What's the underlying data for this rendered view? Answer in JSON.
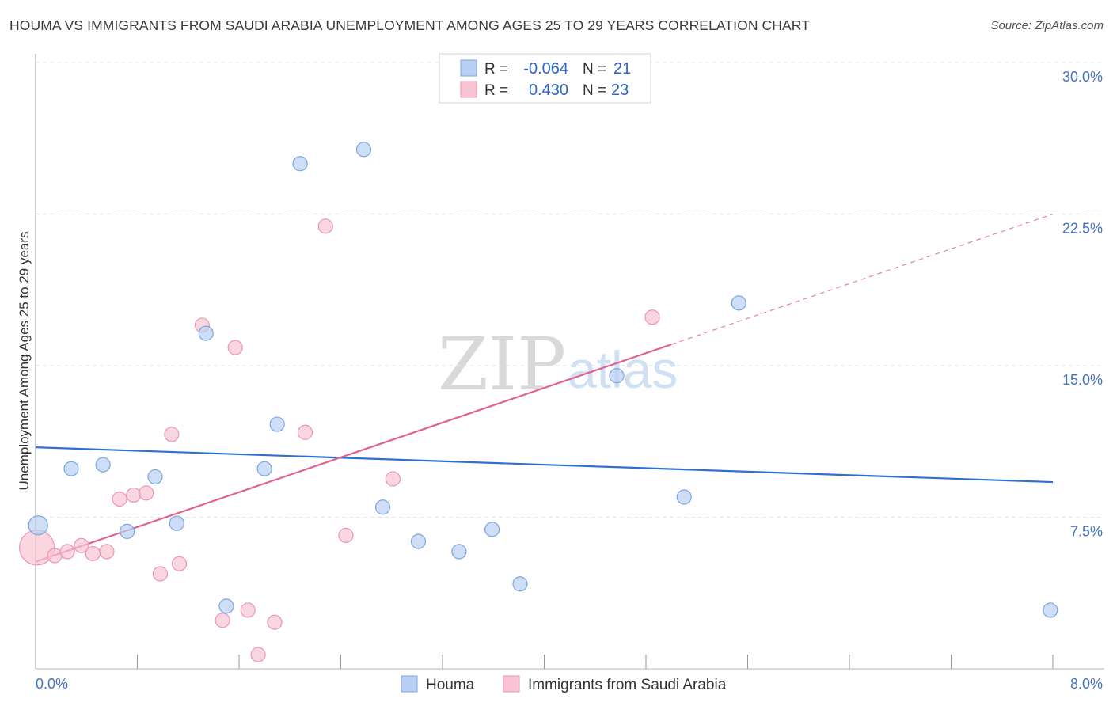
{
  "header": {
    "title": "HOUMA VS IMMIGRANTS FROM SAUDI ARABIA UNEMPLOYMENT AMONG AGES 25 TO 29 YEARS CORRELATION CHART",
    "source": "Source: ZipAtlas.com"
  },
  "watermark": {
    "zip": "ZIP",
    "atlas": "atlas"
  },
  "legend_top": {
    "row1": {
      "r_label": "R =",
      "r_value": "-0.064",
      "n_label": "N =",
      "n_value": "21"
    },
    "row2": {
      "r_label": "R =",
      "r_value": "0.430",
      "n_label": "N =",
      "n_value": "23"
    }
  },
  "legend_bottom": {
    "series1": "Houma",
    "series2": "Immigrants from Saudi Arabia"
  },
  "colors": {
    "houma_fill": "#b9d0f2",
    "houma_stroke": "#7aa6e0",
    "houma_line": "#2f6fcf",
    "saudi_fill": "#f8c4d3",
    "saudi_stroke": "#ea97b2",
    "saudi_line": "#e0638f",
    "tick_text": "#4472c4",
    "grid": "#e2e2e2"
  },
  "chart_data": {
    "type": "scatter",
    "title": "HOUMA VS IMMIGRANTS FROM SAUDI ARABIA UNEMPLOYMENT AMONG AGES 25 TO 29 YEARS CORRELATION CHART",
    "xlabel": "",
    "ylabel": "Unemployment Among Ages 25 to 29 years",
    "xlim": [
      0,
      8.0
    ],
    "ylim": [
      0,
      30.0
    ],
    "x_tick_labels": [
      "0.0%",
      "8.0%"
    ],
    "y_tick_labels": [
      "7.5%",
      "15.0%",
      "22.5%",
      "30.0%"
    ],
    "y_ticks": [
      7.5,
      15.0,
      22.5,
      30.0
    ],
    "grid": true,
    "legend_position": "top-center",
    "series": [
      {
        "name": "Houma",
        "r": -0.064,
        "n": 21,
        "points": [
          [
            0.02,
            7.1
          ],
          [
            0.28,
            9.9
          ],
          [
            0.53,
            10.1
          ],
          [
            0.72,
            6.8
          ],
          [
            0.94,
            9.5
          ],
          [
            1.11,
            7.2
          ],
          [
            1.34,
            16.6
          ],
          [
            1.5,
            3.1
          ],
          [
            1.8,
            9.9
          ],
          [
            1.9,
            12.1
          ],
          [
            2.08,
            25.0
          ],
          [
            2.58,
            25.7
          ],
          [
            2.73,
            8.0
          ],
          [
            3.01,
            6.3
          ],
          [
            3.33,
            5.8
          ],
          [
            3.59,
            6.9
          ],
          [
            3.81,
            4.2
          ],
          [
            4.57,
            14.5
          ],
          [
            5.1,
            8.5
          ],
          [
            5.53,
            18.1
          ],
          [
            7.98,
            2.9
          ]
        ],
        "trend": {
          "x": [
            0.0,
            8.0
          ],
          "y": [
            10.96,
            9.24
          ]
        }
      },
      {
        "name": "Immigrants from Saudi Arabia",
        "r": 0.43,
        "n": 23,
        "points": [
          [
            0.01,
            6.0
          ],
          [
            0.15,
            5.6
          ],
          [
            0.25,
            5.8
          ],
          [
            0.36,
            6.1
          ],
          [
            0.45,
            5.7
          ],
          [
            0.56,
            5.8
          ],
          [
            0.66,
            8.4
          ],
          [
            0.77,
            8.6
          ],
          [
            0.87,
            8.7
          ],
          [
            0.98,
            4.7
          ],
          [
            1.07,
            11.6
          ],
          [
            1.13,
            5.2
          ],
          [
            1.31,
            17.0
          ],
          [
            1.47,
            2.4
          ],
          [
            1.57,
            15.9
          ],
          [
            1.67,
            2.9
          ],
          [
            1.75,
            0.7
          ],
          [
            1.88,
            2.3
          ],
          [
            2.12,
            11.7
          ],
          [
            2.28,
            21.9
          ],
          [
            2.44,
            6.6
          ],
          [
            2.81,
            9.4
          ],
          [
            4.85,
            17.4
          ]
        ],
        "trend": {
          "x": [
            0.0,
            5.0
          ],
          "y": [
            5.3,
            16.05
          ],
          "dashed_to": {
            "x": 8.0,
            "y": 22.5
          }
        }
      }
    ]
  }
}
